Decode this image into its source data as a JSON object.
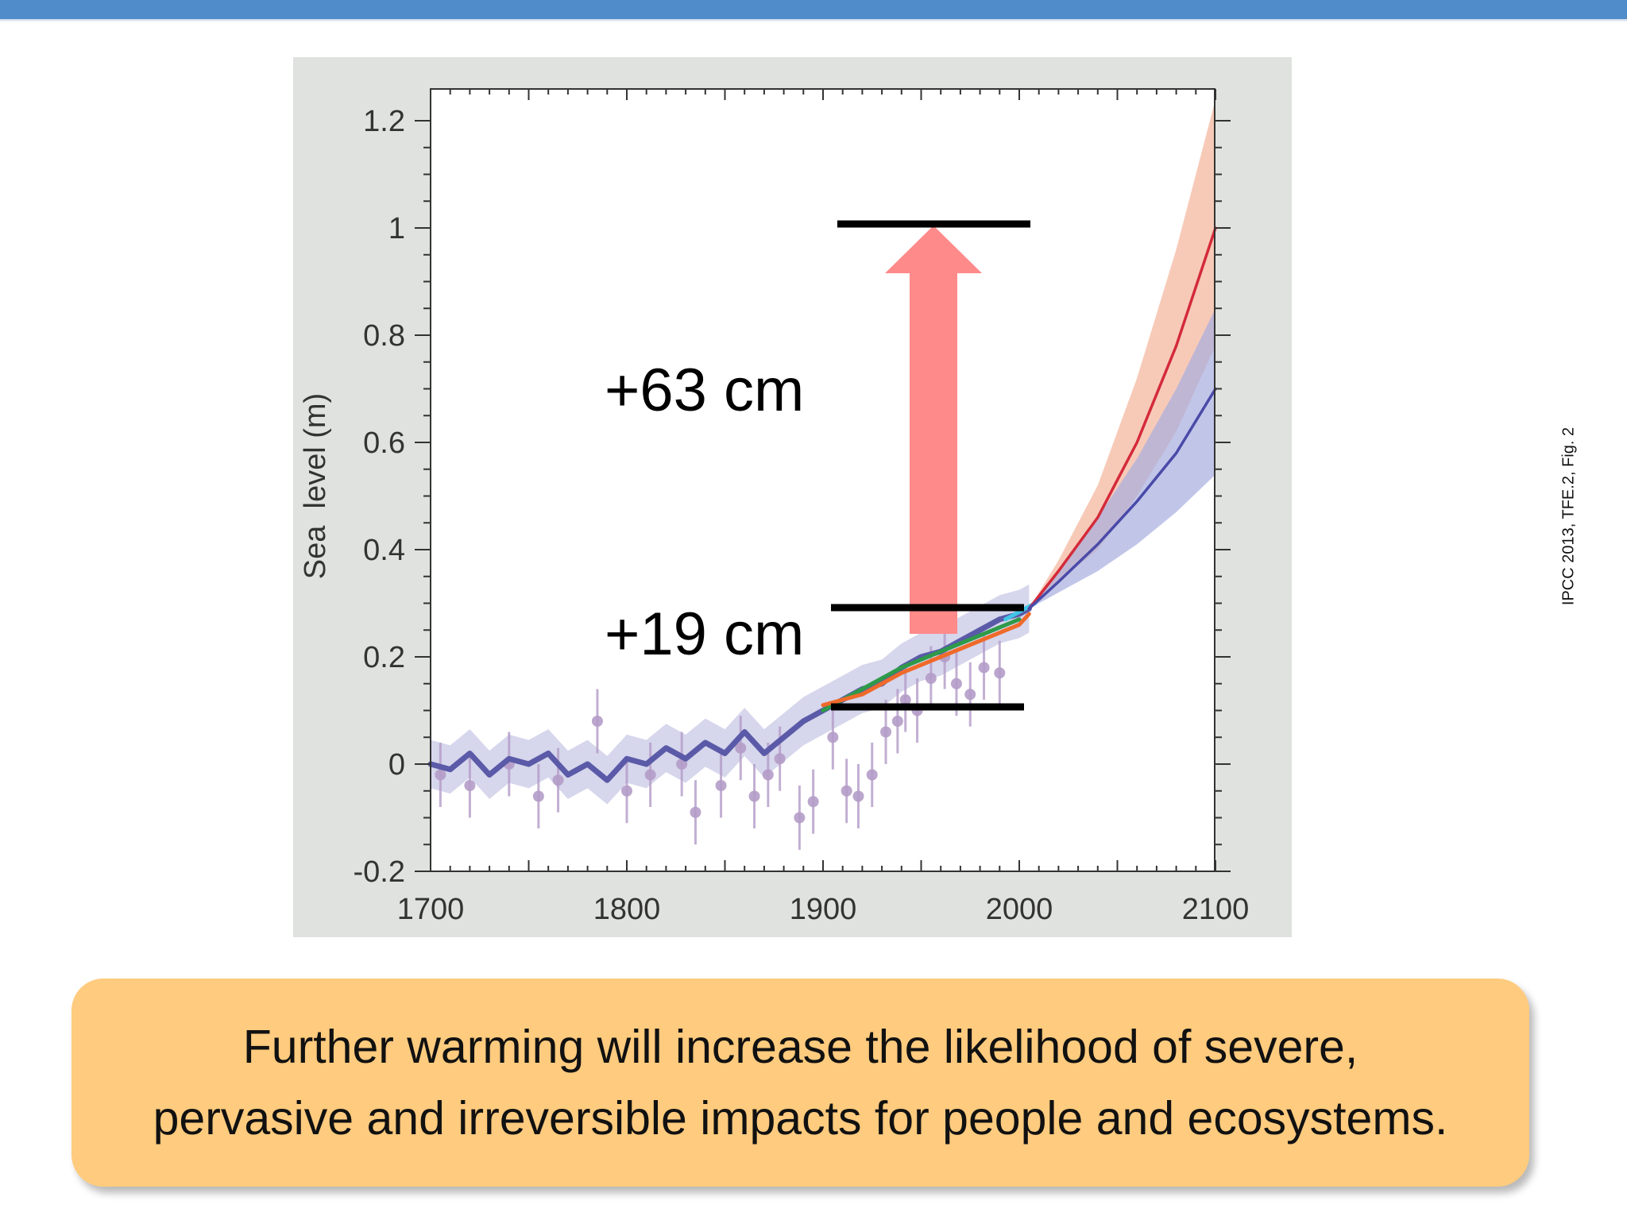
{
  "slide": {
    "citation": "IPCC 2013, TFE.2, Fig. 2",
    "message": {
      "line1": "Further warming will increase the likelihood of severe,",
      "line2": "pervasive and irreversible impacts for people and ecosystems."
    }
  },
  "colors": {
    "top_bar": "#4f8cc9",
    "figure_background": "#dfe2de",
    "plot_background": "#ffffff",
    "historic_series": "#5a5aa8",
    "historic_band": "#b4b4dc",
    "paleo_points": "#b49cc8",
    "tide_gauge_green": "#2e9a4a",
    "tide_gauge_orange": "#ef6a2a",
    "satellite": "#41c6e6",
    "high_scenario": "#d42a3a",
    "high_band": "#f3b39a",
    "low_scenario": "#4a4aa8",
    "low_band": "#a6aee0",
    "arrow": "#ff8a8a",
    "message_box": "#ffcb7e"
  },
  "chart_data": {
    "type": "line",
    "ylabel": "Sea  level (m)",
    "xlabel": "",
    "xlim": [
      1700,
      2100
    ],
    "ylim": [
      -0.2,
      1.25
    ],
    "xticks": [
      "1700",
      "1800",
      "1900",
      "2000",
      "2100"
    ],
    "yticks": [
      "1.2",
      "1",
      "0.8",
      "0.6",
      "0.4",
      "0.2",
      "0",
      "-0.2"
    ],
    "grid": false,
    "legend": "none",
    "series": [
      {
        "kind": "historic_reconstruction",
        "x": [
          1700,
          1710,
          1720,
          1730,
          1740,
          1750,
          1760,
          1770,
          1780,
          1790,
          1800,
          1810,
          1820,
          1830,
          1840,
          1850,
          1860,
          1870,
          1880,
          1890,
          1900,
          1910,
          1920,
          1930,
          1940,
          1950,
          1960,
          1970,
          1980,
          1990,
          2000,
          2005
        ],
        "y": [
          0.0,
          -0.01,
          0.02,
          -0.02,
          0.01,
          0.0,
          0.02,
          -0.02,
          0.0,
          -0.03,
          0.01,
          0.0,
          0.03,
          0.01,
          0.04,
          0.02,
          0.06,
          0.02,
          0.05,
          0.08,
          0.1,
          0.12,
          0.14,
          0.15,
          0.18,
          0.2,
          0.21,
          0.23,
          0.25,
          0.27,
          0.28,
          0.29
        ]
      },
      {
        "kind": "tide_gauge_green",
        "x": [
          1900,
          1920,
          1940,
          1960,
          1980,
          2000
        ],
        "y": [
          0.1,
          0.14,
          0.18,
          0.21,
          0.24,
          0.27
        ]
      },
      {
        "kind": "tide_gauge_orange",
        "x": [
          1900,
          1920,
          1940,
          1960,
          1980,
          2000,
          2005
        ],
        "y": [
          0.11,
          0.13,
          0.17,
          0.2,
          0.23,
          0.26,
          0.28
        ]
      },
      {
        "kind": "satellite",
        "x": [
          1993,
          1998,
          2003,
          2008
        ],
        "y": [
          0.27,
          0.28,
          0.29,
          0.3
        ]
      },
      {
        "kind": "projection_high",
        "x": [
          2005,
          2020,
          2040,
          2060,
          2080,
          2100
        ],
        "y": [
          0.29,
          0.36,
          0.46,
          0.6,
          0.78,
          1.0
        ],
        "low": [
          0.29,
          0.34,
          0.4,
          0.5,
          0.62,
          0.78
        ],
        "high": [
          0.29,
          0.38,
          0.52,
          0.72,
          0.96,
          1.24
        ]
      },
      {
        "kind": "projection_low",
        "x": [
          2005,
          2020,
          2040,
          2060,
          2080,
          2100
        ],
        "y": [
          0.29,
          0.34,
          0.41,
          0.49,
          0.58,
          0.7
        ],
        "low": [
          0.29,
          0.32,
          0.36,
          0.41,
          0.47,
          0.54
        ],
        "high": [
          0.29,
          0.36,
          0.46,
          0.57,
          0.7,
          0.85
        ]
      }
    ],
    "paleo_points": {
      "x": [
        1705,
        1720,
        1740,
        1755,
        1765,
        1785,
        1800,
        1812,
        1828,
        1835,
        1848,
        1858,
        1865,
        1872,
        1878,
        1888,
        1895,
        1905,
        1912,
        1918,
        1925,
        1932,
        1938,
        1942,
        1948,
        1955,
        1962,
        1968,
        1975,
        1982,
        1990
      ],
      "y": [
        -0.02,
        -0.04,
        0.0,
        -0.06,
        -0.03,
        0.08,
        -0.05,
        -0.02,
        0.0,
        -0.09,
        -0.04,
        0.03,
        -0.06,
        -0.02,
        0.01,
        -0.1,
        -0.07,
        0.05,
        -0.05,
        -0.06,
        -0.02,
        0.06,
        0.08,
        0.12,
        0.1,
        0.16,
        0.2,
        0.15,
        0.13,
        0.18,
        0.17
      ]
    },
    "annotations": [
      {
        "text": "+63 cm"
      },
      {
        "text": "+19 cm"
      }
    ]
  }
}
